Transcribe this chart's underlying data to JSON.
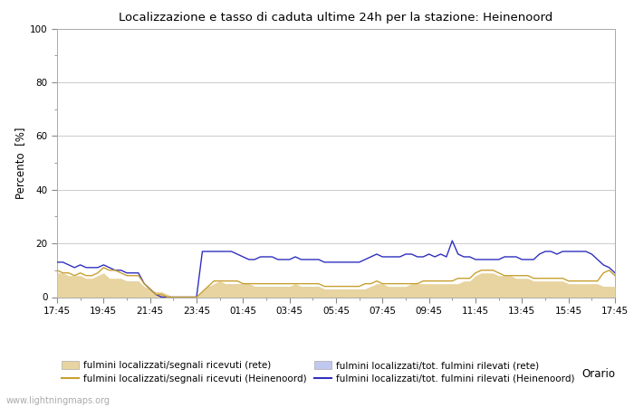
{
  "title": "Localizzazione e tasso di caduta ultime 24h per la stazione: Heinenoord",
  "xlabel": "Orario",
  "ylabel": "Percento  [%]",
  "ylim": [
    0,
    100
  ],
  "yticks": [
    0,
    20,
    40,
    60,
    80,
    100
  ],
  "x_labels": [
    "17:45",
    "19:45",
    "21:45",
    "23:45",
    "01:45",
    "03:45",
    "05:45",
    "07:45",
    "09:45",
    "11:45",
    "13:45",
    "15:45",
    "17:45"
  ],
  "background_color": "#ffffff",
  "plot_bg_color": "#ffffff",
  "watermark": "www.lightningmaps.org",
  "legend": [
    {
      "label": "fulmini localizzati/segnali ricevuti (rete)",
      "color": "#e8d4a0",
      "type": "fill"
    },
    {
      "label": "fulmini localizzati/segnali ricevuti (Heinenoord)",
      "color": "#c8a030",
      "type": "line"
    },
    {
      "label": "fulmini localizzati/tot. fulmini rilevati (rete)",
      "color": "#c0c8f0",
      "type": "fill"
    },
    {
      "label": "fulmini localizzati/tot. fulmini rilevati (Heinenoord)",
      "color": "#3030c0",
      "type": "line"
    }
  ],
  "n_points": 97,
  "rete_segnali": [
    9,
    9,
    8,
    8,
    8,
    7,
    7,
    8,
    9,
    7,
    7,
    7,
    6,
    6,
    6,
    4,
    3,
    2,
    2,
    1,
    0,
    0,
    0,
    0,
    0,
    2,
    4,
    5,
    6,
    5,
    5,
    5,
    5,
    5,
    4,
    4,
    4,
    4,
    4,
    4,
    4,
    5,
    4,
    4,
    4,
    4,
    3,
    3,
    3,
    3,
    3,
    3,
    3,
    3,
    4,
    5,
    5,
    4,
    4,
    4,
    4,
    5,
    5,
    5,
    5,
    5,
    5,
    5,
    5,
    5,
    6,
    6,
    8,
    9,
    9,
    9,
    8,
    8,
    8,
    7,
    7,
    7,
    6,
    6,
    6,
    6,
    6,
    6,
    5,
    5,
    5,
    5,
    5,
    5,
    4,
    4,
    4
  ],
  "heinenoord_segnali": [
    10,
    9,
    9,
    8,
    9,
    8,
    8,
    9,
    11,
    10,
    10,
    9,
    8,
    8,
    8,
    5,
    3,
    1,
    1,
    0,
    0,
    0,
    0,
    0,
    0,
    2,
    4,
    6,
    6,
    6,
    6,
    6,
    5,
    5,
    5,
    5,
    5,
    5,
    5,
    5,
    5,
    5,
    5,
    5,
    5,
    5,
    4,
    4,
    4,
    4,
    4,
    4,
    4,
    5,
    5,
    6,
    5,
    5,
    5,
    5,
    5,
    5,
    5,
    6,
    6,
    6,
    6,
    6,
    6,
    7,
    7,
    7,
    9,
    10,
    10,
    10,
    9,
    8,
    8,
    8,
    8,
    8,
    7,
    7,
    7,
    7,
    7,
    7,
    6,
    6,
    6,
    6,
    6,
    6,
    9,
    10,
    8
  ],
  "rete_tot": [
    7,
    7,
    7,
    7,
    7,
    6,
    6,
    7,
    7,
    6,
    6,
    6,
    6,
    6,
    6,
    3,
    2,
    1,
    1,
    0,
    0,
    0,
    0,
    0,
    0,
    2,
    4,
    4,
    5,
    5,
    5,
    5,
    5,
    5,
    4,
    4,
    4,
    4,
    4,
    4,
    4,
    4,
    4,
    4,
    4,
    4,
    3,
    3,
    3,
    3,
    3,
    3,
    3,
    3,
    4,
    4,
    4,
    3,
    3,
    3,
    3,
    4,
    4,
    4,
    4,
    4,
    4,
    4,
    4,
    4,
    5,
    5,
    7,
    7,
    7,
    7,
    7,
    7,
    7,
    6,
    6,
    6,
    5,
    5,
    5,
    5,
    5,
    5,
    4,
    4,
    4,
    4,
    4,
    4,
    4,
    4,
    3
  ],
  "heinenoord_tot": [
    13,
    13,
    12,
    11,
    12,
    11,
    11,
    11,
    12,
    11,
    10,
    10,
    9,
    9,
    9,
    5,
    3,
    1,
    0,
    0,
    0,
    0,
    0,
    0,
    0,
    17,
    17,
    17,
    17,
    17,
    17,
    16,
    15,
    14,
    14,
    15,
    15,
    15,
    14,
    14,
    14,
    15,
    14,
    14,
    14,
    14,
    13,
    13,
    13,
    13,
    13,
    13,
    13,
    14,
    15,
    16,
    15,
    15,
    15,
    15,
    16,
    16,
    15,
    15,
    16,
    15,
    16,
    15,
    21,
    16,
    15,
    15,
    14,
    14,
    14,
    14,
    14,
    15,
    15,
    15,
    14,
    14,
    14,
    16,
    17,
    17,
    16,
    17,
    17,
    17,
    17,
    17,
    16,
    14,
    12,
    11,
    9
  ]
}
